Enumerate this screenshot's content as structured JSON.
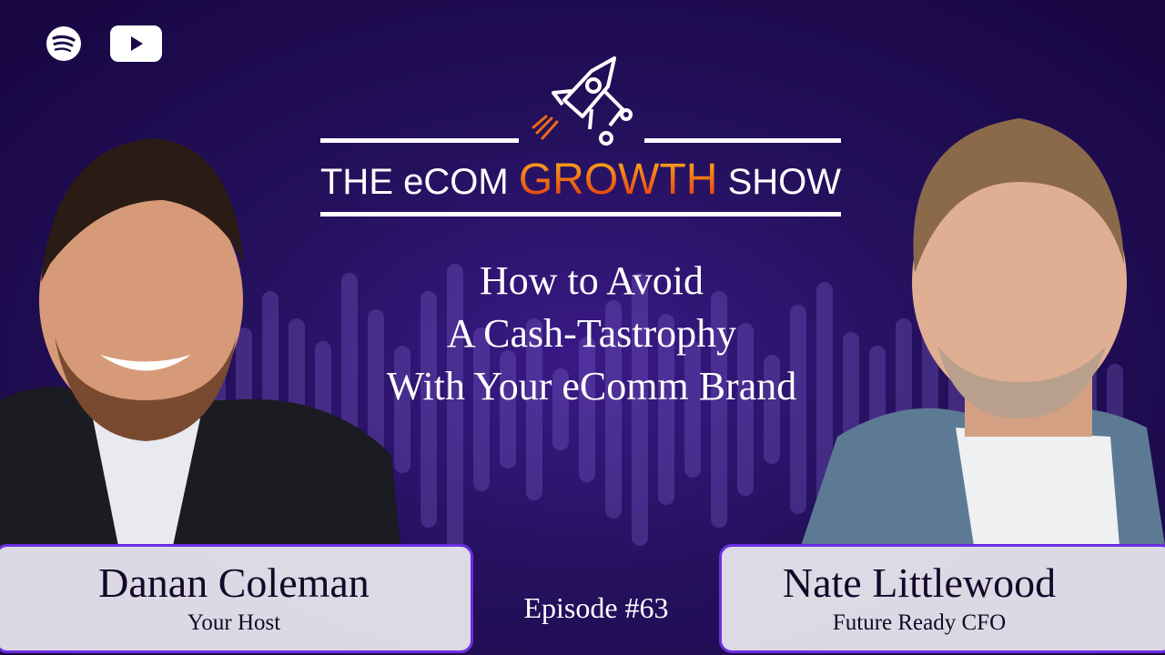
{
  "brand": {
    "show_title_prefix": "THE eCOM",
    "show_title_highlight": "GROWTH",
    "show_title_suffix": "SHOW",
    "accent_gradient": [
      "#ffb020",
      "#e0300a"
    ],
    "background": "#1c0848",
    "border": "#6a2ee0"
  },
  "platform_icons": [
    "spotify-icon",
    "youtube-icon"
  ],
  "headline": {
    "line1": "How to Avoid",
    "line2": "A Cash-Tastrophy",
    "line3": "With Your eComm Brand"
  },
  "host": {
    "name": "Danan Coleman",
    "role": "Your Host"
  },
  "guest": {
    "name": "Nate Littlewood",
    "role": "Future Ready CFO"
  },
  "episode": "Episode #63"
}
